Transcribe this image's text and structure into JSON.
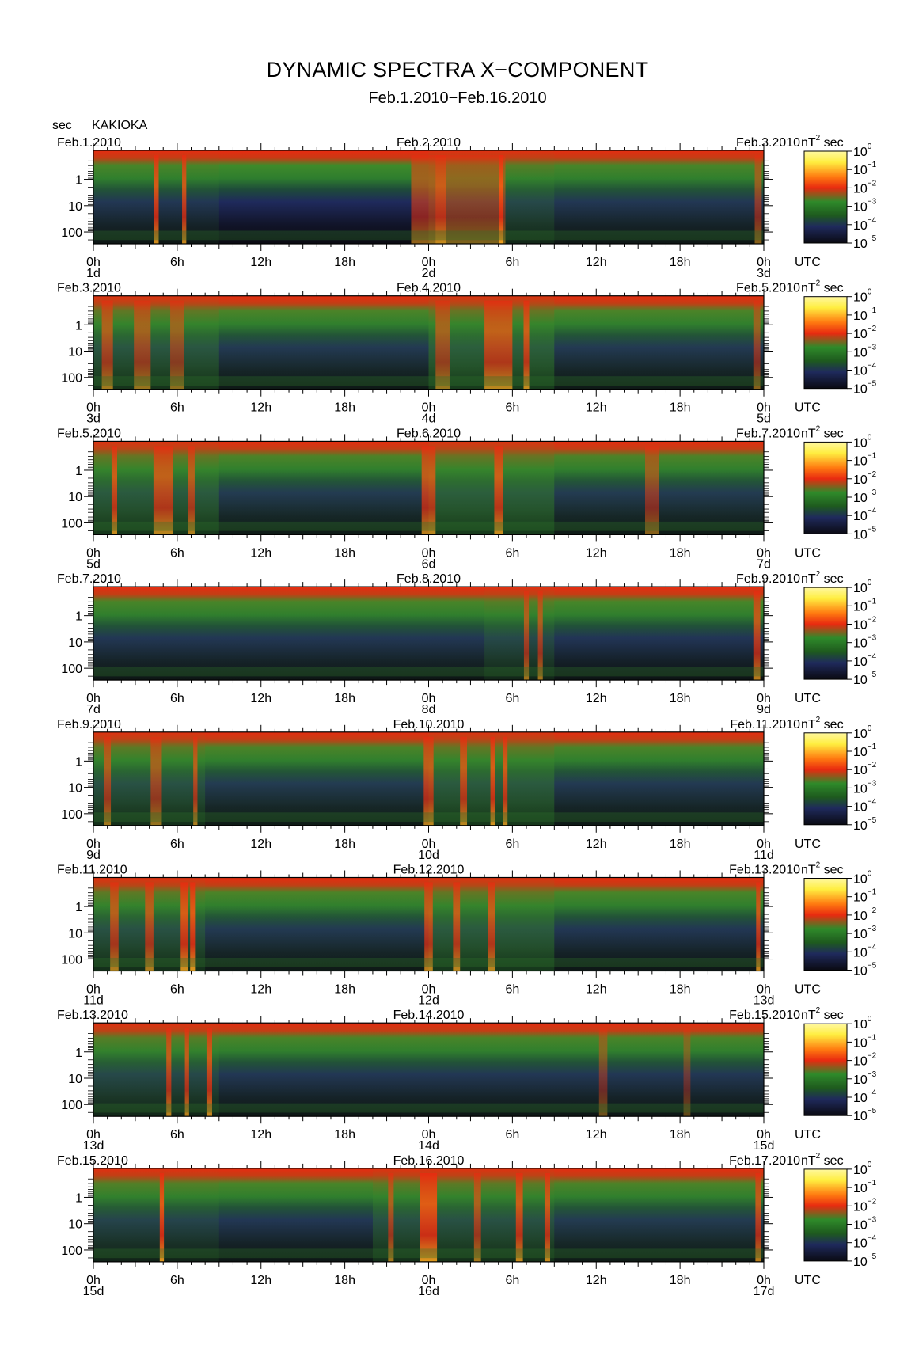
{
  "title": "DYNAMIC SPECTRA X−COMPONENT",
  "subtitle": "Feb.1.2010−Feb.16.2010",
  "y_unit_label": "sec",
  "station": "KAKIOKA",
  "colorbar_unit": "nT",
  "colorbar_unit_exp": "2",
  "colorbar_unit_suffix": "sec",
  "utc_label": "UTC",
  "colorbar_ticks": [
    {
      "base": "10",
      "exp": "0"
    },
    {
      "base": "10",
      "exp": "−1"
    },
    {
      "base": "10",
      "exp": "−2"
    },
    {
      "base": "10",
      "exp": "−3"
    },
    {
      "base": "10",
      "exp": "−4"
    },
    {
      "base": "10",
      "exp": "−5"
    }
  ],
  "colors": {
    "low": "#0a0a12",
    "navy": "#1f2a5c",
    "green": "#2e7d2e",
    "red": "#e82a10",
    "yellow": "#ffee40"
  },
  "chart_data": {
    "type": "heatmap",
    "title": "DYNAMIC SPECTRA X−COMPONENT",
    "subtitle": "Feb.1.2010−Feb.16.2010",
    "ylabel": "sec",
    "y_scale": "log",
    "y_ticks": [
      "1",
      "10",
      "100"
    ],
    "x_ticks": [
      "0h",
      "6h",
      "12h",
      "18h",
      "0h",
      "6h",
      "12h",
      "18h",
      "0h"
    ],
    "color_scale": "log",
    "color_range": [
      1e-05,
      1
    ],
    "color_unit": "nT² sec",
    "panels": [
      {
        "start": "Feb.1.2010",
        "mid": "Feb.2.2010",
        "end": "Feb.3.2010",
        "d0": "1d",
        "d1": "2d",
        "d2": "3d",
        "bursts": [
          [
            4.5,
            0.35,
            0.8
          ],
          [
            6.5,
            0.3,
            0.75
          ],
          [
            24,
            2.5,
            0.55
          ],
          [
            29.2,
            0.3,
            0.85
          ],
          [
            27,
            5,
            0.45
          ],
          [
            47.6,
            0.5,
            0.5
          ]
        ],
        "activity": [
          [
            0,
            9,
            0.15
          ],
          [
            24,
            33,
            0.35
          ],
          [
            33,
            48,
            0.15
          ]
        ]
      },
      {
        "start": "Feb.3.2010",
        "mid": "Feb.4.2010",
        "end": "Feb.5.2010",
        "d0": "3d",
        "d1": "4d",
        "d2": "5d",
        "bursts": [
          [
            1,
            0.8,
            0.6
          ],
          [
            3.5,
            1.2,
            0.55
          ],
          [
            6,
            1,
            0.5
          ],
          [
            25,
            1,
            0.55
          ],
          [
            29,
            2,
            0.7
          ],
          [
            31,
            0.4,
            0.75
          ],
          [
            47.5,
            0.5,
            0.5
          ]
        ],
        "activity": [
          [
            0,
            9,
            0.5
          ],
          [
            9,
            24,
            0.18
          ],
          [
            24,
            33,
            0.6
          ],
          [
            33,
            48,
            0.18
          ]
        ]
      },
      {
        "start": "Feb.5.2010",
        "mid": "Feb.6.2010",
        "end": "Feb.7.2010",
        "d0": "5d",
        "d1": "6d",
        "d2": "7d",
        "bursts": [
          [
            1.5,
            0.4,
            0.75
          ],
          [
            5,
            1.4,
            0.7
          ],
          [
            7,
            0.5,
            0.65
          ],
          [
            24,
            1,
            0.7
          ],
          [
            29,
            0.6,
            0.75
          ],
          [
            40,
            1,
            0.5
          ]
        ],
        "activity": [
          [
            0,
            9,
            0.55
          ],
          [
            9,
            24,
            0.2
          ],
          [
            24,
            33,
            0.6
          ],
          [
            33,
            48,
            0.2
          ]
        ]
      },
      {
        "start": "Feb.7.2010",
        "mid": "Feb.8.2010",
        "end": "Feb.9.2010",
        "d0": "7d",
        "d1": "8d",
        "d2": "9d",
        "bursts": [
          [
            31,
            0.35,
            0.6
          ],
          [
            32,
            0.35,
            0.6
          ],
          [
            47.5,
            0.5,
            0.7
          ]
        ],
        "activity": [
          [
            0,
            28,
            0.15
          ],
          [
            28,
            33,
            0.35
          ],
          [
            33,
            48,
            0.12
          ]
        ]
      },
      {
        "start": "Feb.9.2010",
        "mid": "Feb.10.2010",
        "end": "Feb.11.2010",
        "d0": "9d",
        "d1": "10d",
        "d2": "11d",
        "bursts": [
          [
            1,
            0.5,
            0.6
          ],
          [
            4.5,
            0.8,
            0.55
          ],
          [
            7.3,
            0.3,
            0.65
          ],
          [
            24,
            0.7,
            0.7
          ],
          [
            26.5,
            0.5,
            0.7
          ],
          [
            28.6,
            0.35,
            0.8
          ],
          [
            29.5,
            0.3,
            0.75
          ]
        ],
        "activity": [
          [
            0,
            8,
            0.45
          ],
          [
            8,
            24,
            0.2
          ],
          [
            24,
            33,
            0.55
          ],
          [
            33,
            48,
            0.18
          ]
        ]
      },
      {
        "start": "Feb.11.2010",
        "mid": "Feb.12.2010",
        "end": "Feb.13.2010",
        "d0": "11d",
        "d1": "12d",
        "d2": "13d",
        "bursts": [
          [
            1.5,
            0.6,
            0.65
          ],
          [
            4,
            0.6,
            0.65
          ],
          [
            6.5,
            0.5,
            0.8
          ],
          [
            7.1,
            0.35,
            0.85
          ],
          [
            24,
            0.6,
            0.7
          ],
          [
            26,
            0.5,
            0.7
          ],
          [
            28.5,
            0.5,
            0.7
          ],
          [
            47.6,
            0.3,
            0.75
          ]
        ],
        "activity": [
          [
            0,
            8,
            0.45
          ],
          [
            8,
            24,
            0.18
          ],
          [
            24,
            33,
            0.55
          ],
          [
            33,
            48,
            0.15
          ]
        ]
      },
      {
        "start": "Feb.13.2010",
        "mid": "Feb.14.2010",
        "end": "Feb.15.2010",
        "d0": "13d",
        "d1": "14d",
        "d2": "15d",
        "bursts": [
          [
            5.4,
            0.35,
            0.7
          ],
          [
            6.7,
            0.3,
            0.7
          ],
          [
            8.3,
            0.4,
            0.75
          ],
          [
            36.5,
            0.6,
            0.4
          ],
          [
            42.5,
            0.5,
            0.35
          ]
        ],
        "activity": [
          [
            0,
            9,
            0.35
          ],
          [
            9,
            48,
            0.15
          ]
        ]
      },
      {
        "start": "Feb.15.2010",
        "mid": "Feb.16.2010",
        "end": "Feb.17.2010",
        "d0": "15d",
        "d1": "16d",
        "d2": "17d",
        "bursts": [
          [
            4.9,
            0.3,
            0.85
          ],
          [
            21.3,
            0.4,
            0.6
          ],
          [
            24,
            1.2,
            0.85
          ],
          [
            27.5,
            0.5,
            0.6
          ],
          [
            30.5,
            0.5,
            0.75
          ],
          [
            32.5,
            0.4,
            0.75
          ],
          [
            47.6,
            0.4,
            0.7
          ]
        ],
        "activity": [
          [
            0,
            9,
            0.3
          ],
          [
            9,
            20,
            0.15
          ],
          [
            20,
            33,
            0.45
          ],
          [
            33,
            48,
            0.2
          ]
        ]
      }
    ]
  }
}
